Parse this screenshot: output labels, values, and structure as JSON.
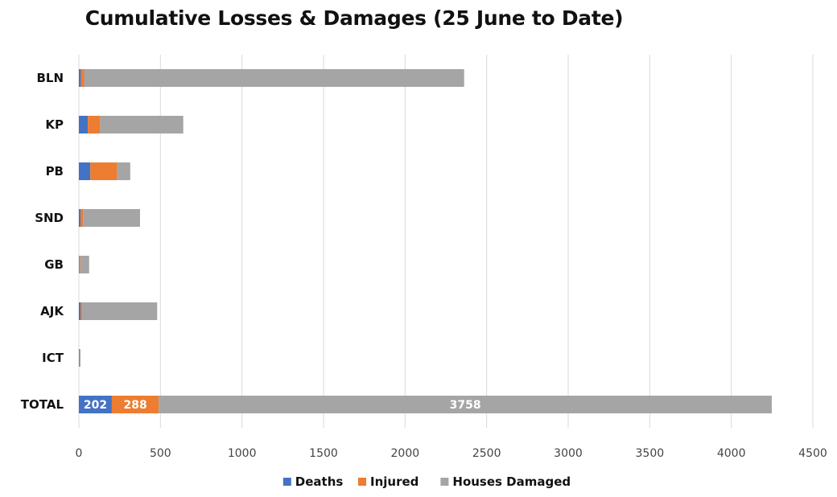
{
  "chart_data": {
    "type": "bar",
    "orientation": "horizontal",
    "stacked": true,
    "title": "Cumulative Losses & Damages (25 June to Date)",
    "categories": [
      "BLN",
      "KP",
      "PB",
      "SND",
      "GB",
      "AJK",
      "ICT",
      "TOTAL"
    ],
    "series": [
      {
        "name": "Deaths",
        "color": "#4472C4",
        "values": [
          12,
          55,
          70,
          10,
          3,
          10,
          3,
          202
        ]
      },
      {
        "name": "Injured",
        "color": "#ED7D31",
        "values": [
          20,
          75,
          165,
          15,
          5,
          10,
          2,
          288
        ]
      },
      {
        "name": "Houses Damaged",
        "color": "#A5A5A5",
        "values": [
          2330,
          510,
          80,
          350,
          55,
          460,
          5,
          3758
        ]
      }
    ],
    "data_labels": {
      "category": "TOTAL",
      "values": [
        "202",
        "288",
        "3758"
      ]
    },
    "xlim": [
      0,
      4500
    ],
    "xticks": [
      "0",
      "500",
      "1000",
      "1500",
      "2000",
      "2500",
      "3000",
      "3500",
      "4000",
      "4500"
    ],
    "grid": "vertical",
    "legend_position": "bottom"
  }
}
